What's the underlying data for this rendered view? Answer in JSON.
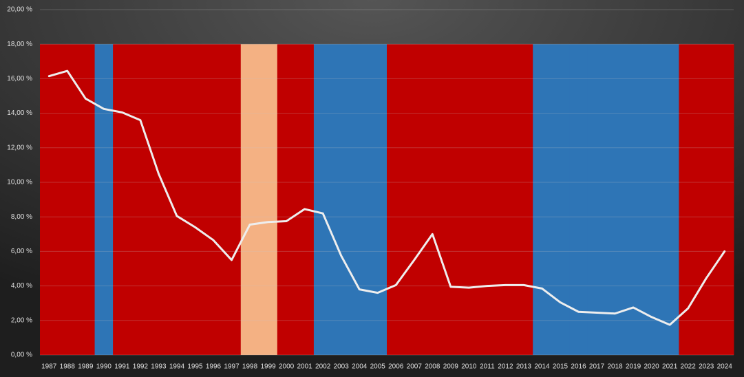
{
  "chart_data": {
    "type": "line",
    "categories": [
      "1987",
      "1988",
      "1989",
      "1990",
      "1991",
      "1992",
      "1993",
      "1994",
      "1995",
      "1996",
      "1997",
      "1998",
      "1999",
      "2000",
      "2001",
      "2002",
      "2003",
      "2004",
      "2005",
      "2006",
      "2007",
      "2008",
      "2009",
      "2010",
      "2011",
      "2012",
      "2013",
      "2014",
      "2015",
      "2016",
      "2017",
      "2018",
      "2019",
      "2020",
      "2021",
      "2022",
      "2023",
      "2024"
    ],
    "series": [
      {
        "color": "#eeeeee",
        "values": [
          16.15,
          16.45,
          14.85,
          14.25,
          14.05,
          13.6,
          10.5,
          8.05,
          7.4,
          6.65,
          5.5,
          7.55,
          7.7,
          7.75,
          8.45,
          8.2,
          5.75,
          3.8,
          3.6,
          4.05,
          5.5,
          7.0,
          3.95,
          3.9,
          4.0,
          4.05,
          4.05,
          3.85,
          3.05,
          2.5,
          2.45,
          2.4,
          2.75,
          2.2,
          1.75,
          2.7,
          4.45,
          6.0
        ]
      }
    ],
    "bars": {
      "values": [
        18,
        18,
        18,
        18,
        18,
        18,
        18,
        18,
        18,
        18,
        18,
        18,
        18,
        18,
        18,
        18,
        18,
        18,
        18,
        18,
        18,
        18,
        18,
        18,
        18,
        18,
        18,
        18,
        18,
        18,
        18,
        18,
        18,
        18,
        18,
        18,
        18,
        18
      ],
      "colors": [
        "#c00000",
        "#c00000",
        "#c00000",
        "#2e75b6",
        "#c00000",
        "#c00000",
        "#c00000",
        "#c00000",
        "#c00000",
        "#c00000",
        "#c00000",
        "#f4b183",
        "#f4b183",
        "#c00000",
        "#c00000",
        "#2e75b6",
        "#2e75b6",
        "#2e75b6",
        "#2e75b6",
        "#c00000",
        "#c00000",
        "#c00000",
        "#c00000",
        "#c00000",
        "#c00000",
        "#c00000",
        "#c00000",
        "#2e75b6",
        "#2e75b6",
        "#2e75b6",
        "#2e75b6",
        "#2e75b6",
        "#2e75b6",
        "#2e75b6",
        "#2e75b6",
        "#c00000",
        "#c00000",
        "#c00000"
      ]
    },
    "ylim": [
      0,
      20
    ],
    "yticks": [
      {
        "value": 0,
        "label": "0,00 %"
      },
      {
        "value": 2,
        "label": "2,00 %"
      },
      {
        "value": 4,
        "label": "4,00 %"
      },
      {
        "value": 6,
        "label": "6,00 %"
      },
      {
        "value": 8,
        "label": "8,00 %"
      },
      {
        "value": 10,
        "label": "10,00 %"
      },
      {
        "value": 12,
        "label": "12,00 %"
      },
      {
        "value": 14,
        "label": "14,00 %"
      },
      {
        "value": 16,
        "label": "16,00 %"
      },
      {
        "value": 18,
        "label": "18,00 %"
      },
      {
        "value": 20,
        "label": "20,00 %"
      }
    ],
    "grid": true
  }
}
